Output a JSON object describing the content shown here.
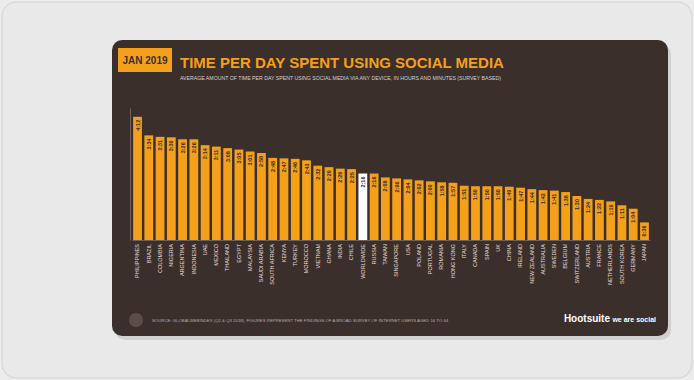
{
  "chart_data": {
    "type": "bar",
    "title": "TIME PER DAY SPENT USING SOCIAL MEDIA",
    "subtitle": "AVERAGE AMOUNT OF TIME PER DAY SPENT USING SOCIAL MEDIA VIA ANY DEVICE, IN HOURS AND MINUTES (SURVEY BASED)",
    "annotations": [
      "JAN 2019",
      "SOURCE: GLOBALWEBINDEX (Q2 & Q3 2018). FIGURES REPRESENT THE FINDINGS OF A BROAD SURVEY OF INTERNET USERS AGED 16 TO 64.",
      "Hootsuite",
      "we are social"
    ],
    "categories": [
      "PHILIPPINES",
      "BRAZIL",
      "COLOMBIA",
      "NIGERIA",
      "ARGENTINA",
      "INDONESIA",
      "UAE",
      "MEXICO",
      "THAILAND",
      "EGYPT",
      "MALAYSIA",
      "SAUDI ARABIA",
      "SOUTH AFRICA",
      "KENYA",
      "TURKEY",
      "MOROCCO",
      "VIETNAM",
      "GHANA",
      "INDIA",
      "CHILE",
      "WORLDWIDE",
      "RUSSIA",
      "TAIWAN",
      "SINGAPORE",
      "USA",
      "POLAND",
      "PORTUGAL",
      "ROMANIA",
      "HONG KONG",
      "ITALY",
      "CANADA",
      "SPAIN",
      "UK",
      "CHINA",
      "IRELAND",
      "NEW ZEALAND",
      "AUSTRALIA",
      "SWEDEN",
      "BELGIUM",
      "SWITZERLAND",
      "AUSTRIA",
      "FRANCE",
      "NETHERLANDS",
      "SOUTH KOREA",
      "GERMANY",
      "JAPAN"
    ],
    "values": [
      4.2,
      3.5667,
      3.5167,
      3.5,
      3.4333,
      3.4333,
      3.2333,
      3.1833,
      3.1333,
      3.0833,
      3.0167,
      2.9667,
      2.8,
      2.7833,
      2.7667,
      2.7167,
      2.5333,
      2.4833,
      2.4333,
      2.4167,
      2.2667,
      2.2667,
      2.1333,
      2.1,
      2.0667,
      2.0333,
      2.0,
      1.9667,
      1.95,
      1.85,
      1.8333,
      1.8333,
      1.8333,
      1.8167,
      1.7833,
      1.7333,
      1.7,
      1.6833,
      1.6333,
      1.5,
      1.4,
      1.3667,
      1.3167,
      1.1833,
      1.0667,
      0.6
    ],
    "value_labels": [
      "4:12",
      "3:34",
      "3:31",
      "3:30",
      "3:26",
      "3:26",
      "3:14",
      "3:11",
      "3:08",
      "3:05",
      "3:01",
      "2:58",
      "2:48",
      "2:47",
      "2:46",
      "2:43",
      "2:32",
      "2:29",
      "2:26",
      "2:25",
      "2:16",
      "2:16",
      "2:08",
      "2:06",
      "2:04",
      "2:02",
      "2:00",
      "1:58",
      "1:57",
      "1:51",
      "1:50",
      "1:50",
      "1:50",
      "1:49",
      "1:47",
      "1:44",
      "1:42",
      "1:41",
      "1:38",
      "1:30",
      "1:24",
      "1:22",
      "1:19",
      "1:11",
      "1:04",
      "0:36"
    ],
    "colors": [
      "#f5a01a",
      "#f5a01a",
      "#f5a01a",
      "#f5a01a",
      "#f5a01a",
      "#f5a01a",
      "#f5a01a",
      "#f5a01a",
      "#f5a01a",
      "#f5a01a",
      "#f5a01a",
      "#f5a01a",
      "#f5a01a",
      "#f5a01a",
      "#f5a01a",
      "#f5a01a",
      "#f5a01a",
      "#f5a01a",
      "#f5a01a",
      "#f5a01a",
      "#ffffff",
      "#f5a01a",
      "#f5a01a",
      "#f5a01a",
      "#f5a01a",
      "#f5a01a",
      "#f5a01a",
      "#f5a01a",
      "#f5a01a",
      "#f5a01a",
      "#f5a01a",
      "#f5a01a",
      "#f5a01a",
      "#f5a01a",
      "#f5a01a",
      "#f5a01a",
      "#f5a01a",
      "#f5a01a",
      "#f5a01a",
      "#f5a01a",
      "#f5a01a",
      "#f5a01a",
      "#f5a01a",
      "#f5a01a",
      "#f5a01a",
      "#f5a01a"
    ],
    "ylim": [
      0,
      4.5
    ],
    "grid": false,
    "data_labels": true,
    "tick_labels": "x"
  }
}
